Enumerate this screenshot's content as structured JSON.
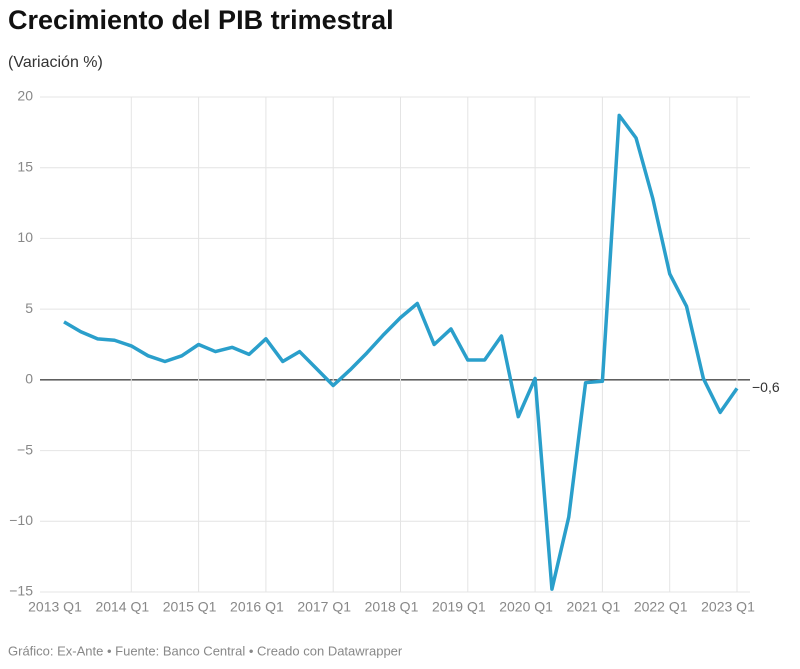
{
  "chart_data": {
    "type": "line",
    "title": "Crecimiento del PIB trimestral",
    "subtitle": "(Variación %)",
    "footer": "Gráfico: Ex-Ante • Fuente: Banco Central • Creado con Datawrapper",
    "categories": [
      "2013 Q1",
      null,
      null,
      null,
      "2014 Q1",
      null,
      null,
      null,
      "2015 Q1",
      null,
      null,
      null,
      "2016 Q1",
      null,
      null,
      null,
      "2017 Q1",
      null,
      null,
      null,
      "2018 Q1",
      null,
      null,
      null,
      "2019 Q1",
      null,
      null,
      null,
      "2020 Q1",
      null,
      null,
      null,
      "2021 Q1",
      null,
      null,
      null,
      "2022 Q1",
      null,
      null,
      null,
      "2023 Q1"
    ],
    "series": [
      {
        "color": "#2a9fcb",
        "values": [
          4.1,
          3.4,
          2.9,
          2.8,
          2.4,
          1.7,
          1.3,
          1.7,
          2.5,
          2.0,
          2.3,
          1.8,
          2.9,
          1.3,
          2.0,
          0.8,
          -0.4,
          0.7,
          1.9,
          3.2,
          4.4,
          5.4,
          2.5,
          3.6,
          1.4,
          1.4,
          3.1,
          -2.6,
          0.1,
          -14.8,
          -9.7,
          -0.2,
          -0.1,
          18.7,
          17.1,
          12.8,
          7.5,
          5.2,
          0.1,
          -2.3,
          -0.6
        ],
        "value_labels": [
          null,
          null,
          null,
          null,
          null,
          null,
          null,
          null,
          null,
          null,
          null,
          null,
          null,
          null,
          null,
          null,
          null,
          null,
          null,
          null,
          null,
          null,
          null,
          null,
          null,
          null,
          null,
          null,
          null,
          null,
          null,
          null,
          null,
          null,
          null,
          null,
          null,
          null,
          null,
          null,
          "−0,6"
        ]
      }
    ],
    "ylim": [
      -15,
      20
    ],
    "yticks": [
      20,
      15,
      10,
      5,
      0,
      {
        "value": -5,
        "label": "−5"
      },
      {
        "value": -10,
        "label": "−10"
      },
      {
        "value": -15,
        "label": "−15"
      }
    ],
    "grid": true
  }
}
